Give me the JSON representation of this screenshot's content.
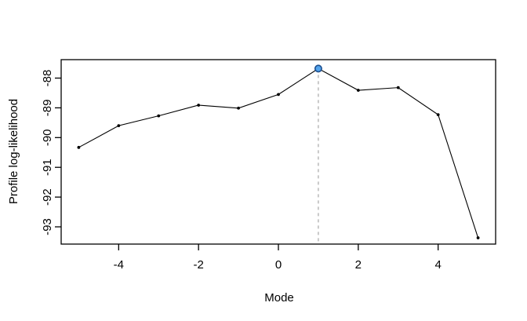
{
  "chart_data": {
    "type": "line",
    "x": [
      -5,
      -4,
      -3,
      -2,
      -1,
      0,
      1,
      2,
      3,
      4,
      5
    ],
    "y": [
      -90.33,
      -89.6,
      -89.27,
      -88.91,
      -89.01,
      -88.55,
      -87.68,
      -88.41,
      -88.32,
      -89.23,
      -93.37
    ],
    "xlabel": "Mode",
    "ylabel": "Profile log-likelihood",
    "xticks": {
      "values": [
        -4,
        -2,
        0,
        2,
        4
      ],
      "labels": [
        "-4",
        "-2",
        "0",
        "2",
        "4"
      ]
    },
    "yticks": {
      "values": [
        -88,
        -89,
        -90,
        -91,
        -92,
        -93
      ],
      "labels": [
        "-88",
        "-89",
        "-90",
        "-91",
        "-92",
        "-93"
      ]
    },
    "xlim": [
      -5.44,
      5.44
    ],
    "ylim": [
      -93.58,
      -87.38
    ],
    "grid": false,
    "legend": "none",
    "line_color": "#000000",
    "point_color": "#000000",
    "box_color": "#000000",
    "highlight_point": {
      "x": 1,
      "y": -87.68,
      "fill": "#54a4ec",
      "stroke": "#1c4f8f"
    },
    "vline": {
      "x": 1,
      "color": "#c9c9c9",
      "dash": "4 4"
    }
  }
}
